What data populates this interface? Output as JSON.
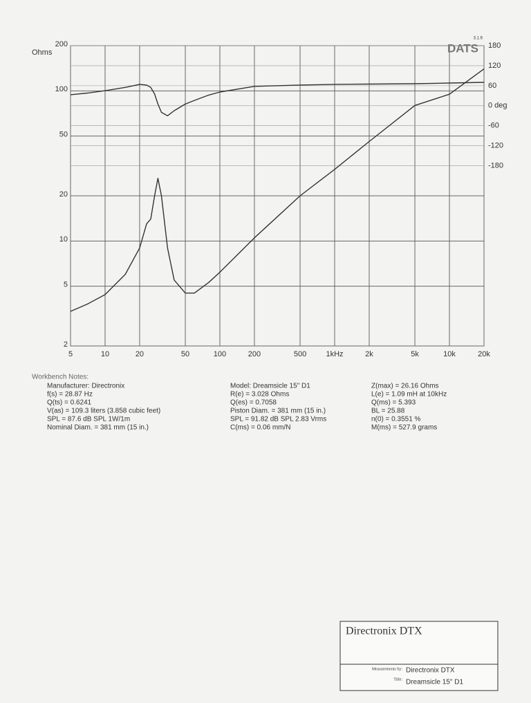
{
  "chart_data": {
    "type": "line",
    "x_scale": "log",
    "y_scale": "log",
    "ylabel": "Ohms",
    "watermark": "DATS",
    "version": "3.1.6",
    "x": [
      5,
      7,
      10,
      15,
      20,
      23,
      25,
      27,
      28.87,
      31,
      35,
      40,
      50,
      60,
      80,
      100,
      200,
      500,
      1000,
      2000,
      5000,
      10000,
      20000
    ],
    "series": [
      {
        "color": "#333333",
        "values": [
          3.4,
          3.8,
          4.4,
          6,
          9,
          13,
          14,
          20,
          26.16,
          20,
          9,
          5.5,
          4.5,
          4.5,
          5.3,
          6.2,
          10.5,
          20,
          30,
          46,
          80,
          95,
          140
        ]
      },
      {
        "color": "#333333",
        "axis": "y2",
        "values": [
          33,
          38,
          45,
          55,
          64,
          62,
          55,
          35,
          5,
          -20,
          -30,
          -15,
          5,
          16,
          32,
          41,
          58,
          62,
          64,
          65,
          66,
          68,
          70
        ]
      }
    ],
    "xlim": [
      5,
      20000
    ],
    "ylim": [
      2,
      200
    ],
    "y2lim": [
      -720,
      180
    ],
    "xticks": [
      5,
      10,
      20,
      50,
      100,
      200,
      500,
      {
        "value": 1000,
        "label": "1kHz"
      },
      {
        "value": 2000,
        "label": "2k"
      },
      {
        "value": 5000,
        "label": "5k"
      },
      {
        "value": 10000,
        "label": "10k"
      },
      {
        "value": 20000,
        "label": "20k"
      }
    ],
    "yticks": [
      2,
      5,
      10,
      20,
      50,
      100,
      200
    ],
    "y2ticks": [
      180,
      120,
      60,
      {
        "value": 0,
        "label": "0 deg"
      },
      -60,
      -120,
      -180
    ],
    "grid": true
  },
  "notes": {
    "title": "Workbench Notes:",
    "columns": [
      [
        "Manufacturer: Directronix",
        "f(s) = 28.87 Hz",
        "Q(ts) = 0.6241",
        "V(as) = 109.3 liters  (3.858 cubic feet)",
        "SPL = 87.6 dB SPL 1W/1m",
        "Nominal Diam. = 381 mm (15 in.)"
      ],
      [
        "Model: Dreamsicle 15\" D1",
        "R(e) = 3.028 Ohms",
        "Q(es) = 0.7058",
        "Piston Diam. = 381 mm (15 in.)",
        "SPL = 91.82 dB SPL 2.83 Vrms",
        "C(ms) = 0.06 mm/N"
      ],
      [
        "Z(max) = 26.16 Ohms",
        "L(e) = 1.09 mH at 10kHz",
        "Q(ms) = 5.393",
        "BL = 25.88",
        "n(0) = 0.3551 %",
        "M(ms) = 527.9 grams"
      ]
    ]
  },
  "title_block": {
    "title": "Directronix DTX",
    "measured_by_label": "Measurements by:",
    "measured_by": "Directronix DTX",
    "title_label": "Title:",
    "name": "Dreamsicle 15\" D1"
  }
}
